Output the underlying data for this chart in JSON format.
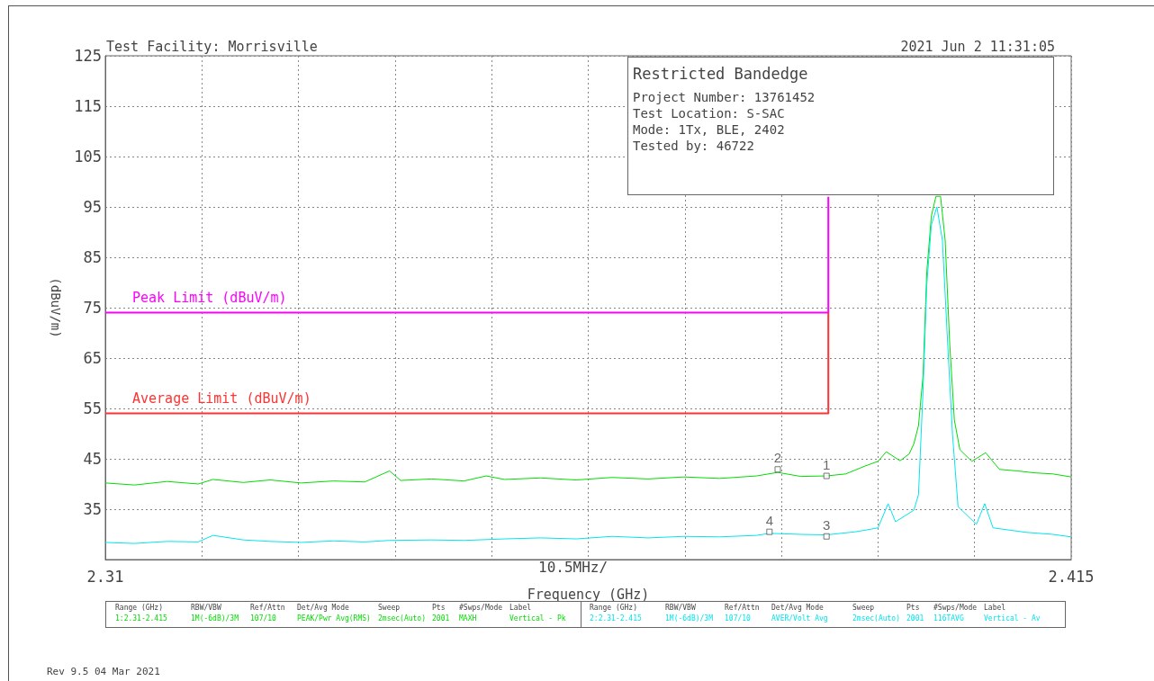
{
  "chart_data": {
    "type": "line",
    "title": "Restricted Bandedge",
    "xlabel": "Frequency (GHz)",
    "ylabel": "(dBuV/m)",
    "xlim": [
      2.31,
      2.415
    ],
    "ylim": [
      25,
      125
    ],
    "xticks": [
      2.31,
      {
        "value": 2.3205,
        "label": null
      },
      {
        "value": 2.331,
        "label": null
      },
      {
        "value": 2.3415,
        "label": null
      },
      {
        "value": 2.352,
        "label": null
      },
      {
        "value": 2.3625,
        "label": null
      },
      {
        "value": 2.373,
        "label": null
      },
      {
        "value": 2.3835,
        "label": null
      },
      {
        "value": 2.394,
        "label": null
      },
      {
        "value": 2.4045,
        "label": null
      },
      2.415
    ],
    "yticks": [
      35,
      45,
      55,
      65,
      75,
      85,
      95,
      105,
      115,
      125
    ],
    "grid": true,
    "marker": "none",
    "series": [
      {
        "color": "#00dd00",
        "x": [
          2.31,
          2.3132,
          2.3167,
          2.3201,
          2.3217,
          2.325,
          2.3279,
          2.3313,
          2.3348,
          2.3382,
          2.3409,
          2.3421,
          2.3455,
          2.349,
          2.3514,
          2.3534,
          2.3573,
          2.3612,
          2.3651,
          2.369,
          2.3729,
          2.3768,
          2.3808,
          2.3831,
          2.3856,
          2.3884,
          2.3905,
          2.3925,
          2.394,
          2.3949,
          2.3964,
          2.3974,
          2.3979,
          2.3984,
          2.3989,
          2.3993,
          2.3998,
          2.4003,
          2.4008,
          2.4013,
          2.4018,
          2.4023,
          2.4029,
          2.4042,
          2.4057,
          2.4072,
          2.4091,
          2.4111,
          2.413,
          2.415
        ],
        "values": [
          40.2,
          39.8,
          40.5,
          40.0,
          40.9,
          40.3,
          40.8,
          40.2,
          40.6,
          40.4,
          42.6,
          40.7,
          41.0,
          40.6,
          41.6,
          40.9,
          41.2,
          40.8,
          41.3,
          41.0,
          41.4,
          41.1,
          41.6,
          42.3,
          41.5,
          41.6,
          42.0,
          43.5,
          44.5,
          46.4,
          44.6,
          46.0,
          48.0,
          51.6,
          61.6,
          82.0,
          93.2,
          97.1,
          97.1,
          88.4,
          67.7,
          52.7,
          46.8,
          44.5,
          46.2,
          42.9,
          42.6,
          42.2,
          42.0,
          41.4
        ]
      },
      {
        "color": "#00e5ee",
        "x": [
          2.31,
          2.3132,
          2.3167,
          2.3201,
          2.3217,
          2.325,
          2.3279,
          2.3313,
          2.3348,
          2.3382,
          2.3409,
          2.3455,
          2.349,
          2.3534,
          2.3573,
          2.3612,
          2.3651,
          2.369,
          2.3729,
          2.3768,
          2.3808,
          2.3822,
          2.3856,
          2.3884,
          2.3915,
          2.3925,
          2.394,
          2.3951,
          2.3959,
          2.3979,
          2.3984,
          2.3989,
          2.3993,
          2.3998,
          2.4004,
          2.401,
          2.4015,
          2.4021,
          2.4027,
          2.4047,
          2.4056,
          2.4065,
          2.4101,
          2.413,
          2.415
        ],
        "values": [
          28.4,
          28.2,
          28.6,
          28.5,
          29.8,
          28.9,
          28.6,
          28.4,
          28.7,
          28.5,
          28.8,
          28.9,
          28.8,
          29.1,
          29.3,
          29.1,
          29.6,
          29.3,
          29.6,
          29.5,
          29.8,
          30.2,
          30.0,
          29.9,
          30.5,
          30.8,
          31.3,
          36.1,
          32.5,
          34.8,
          37.9,
          58.7,
          79.5,
          91.4,
          95.0,
          88.4,
          70.5,
          49.8,
          35.5,
          32.0,
          36.1,
          31.3,
          30.4,
          30.0,
          29.5
        ]
      },
      {
        "name": "Peak Limit (dBuV/m)",
        "color": "#ff00ff",
        "x": [
          2.31,
          2.3886,
          2.3886
        ],
        "values": [
          74,
          74,
          97
        ]
      },
      {
        "name": "Average Limit (dBuV/m)",
        "color": "#ff3333",
        "x": [
          2.31,
          2.3886,
          2.3886
        ],
        "values": [
          54,
          54,
          74
        ]
      }
    ],
    "annotations": [
      "Test Facility:  Morrisville",
      "2021 Jun 2   11:31:05",
      "Project Number: 13761452",
      "Test Location: S-SAC",
      "Mode: 1Tx, BLE, 2402",
      "Tested by: 46722",
      "Rev 9.5 04 Mar 2021",
      "10.5MHz/",
      "Range (GHz)",
      "RBW/VBW",
      "Ref/Attn",
      "Det/Avg Mode",
      "Sweep",
      "Pts",
      "#Swps/Mode",
      "Label",
      "1:2.31-2.415",
      "1M(-6dB)/3M",
      "107/10",
      "PEAK/Pwr Avg(RMS)",
      "2msec(Auto)",
      "2001",
      "MAXH",
      "Vertical - Pk",
      "Range (GHz)",
      "RBW/VBW",
      "Ref/Attn",
      "Det/Avg Mode",
      "Sweep",
      "Pts",
      "#Swps/Mode",
      "Label",
      "2:2.31-2.415",
      "1M(-6dB)/3M",
      "107/10",
      "AVER/Volt Avg",
      "2msec(Auto)",
      "2001",
      "116TAVG",
      "Vertical - Av",
      {
        "text": "1",
        "x": 2.3884,
        "y": 41.6
      },
      {
        "text": "2",
        "x": 2.3831,
        "y": 42.9
      },
      {
        "text": "3",
        "x": 2.3884,
        "y": 29.6
      },
      {
        "text": "4",
        "x": 2.3822,
        "y": 30.5
      }
    ]
  }
}
